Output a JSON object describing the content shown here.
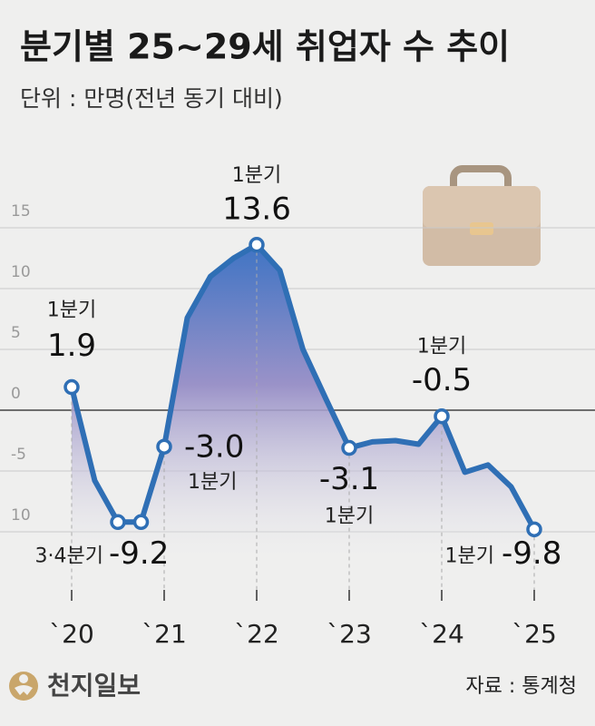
{
  "chart_data": {
    "type": "line",
    "title": "분기별 25~29세 취업자 수 추이",
    "subtitle": "단위 : 만명(전년 동기 대비)",
    "source": "자료 : 통계청",
    "logo": "천지일보",
    "categories": [
      "`20",
      null,
      null,
      null,
      "`21",
      null,
      null,
      null,
      "`22",
      null,
      null,
      null,
      "`23",
      null,
      null,
      null,
      "`24",
      null,
      null,
      null,
      "`25"
    ],
    "values": [
      1.9,
      -5.8,
      -9.2,
      -9.2,
      -3.0,
      7.6,
      11.0,
      12.5,
      13.6,
      11.5,
      5.0,
      0.9,
      -3.1,
      -2.6,
      -2.5,
      -2.8,
      -0.5,
      -5.1,
      -4.5,
      -6.3,
      -9.8
    ],
    "value_labels": [
      "1.9",
      null,
      "-9.2",
      null,
      "-3.0",
      null,
      null,
      null,
      "13.6",
      null,
      null,
      null,
      "-3.1",
      null,
      null,
      null,
      "-0.5",
      null,
      null,
      null,
      "-9.8"
    ],
    "period_labels": [
      "1분기",
      null,
      "3·4분기",
      null,
      "1분기",
      null,
      null,
      null,
      "1분기",
      null,
      null,
      null,
      "1분기",
      null,
      null,
      null,
      "1분기",
      null,
      null,
      null,
      "1분기"
    ],
    "color": "#2f6fb5",
    "ylim": [
      -10,
      15
    ],
    "yticks": [
      15,
      10,
      5,
      0,
      -5,
      {
        "value": -10,
        "label": "10"
      }
    ],
    "grid": true
  }
}
